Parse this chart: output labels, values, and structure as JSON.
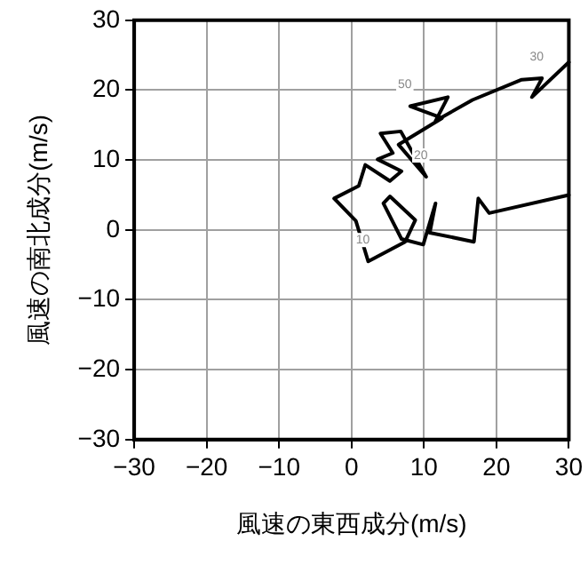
{
  "chart_data": {
    "type": "line",
    "xlabel": "風速の東西成分(m/s)",
    "ylabel": "風速の南北成分(m/s)",
    "series": [
      {
        "color": "#000000",
        "x": [
          30,
          19,
          17.5,
          16.9,
          10.8,
          11.6,
          9.9,
          6.9,
          4.4,
          5.3,
          8.8,
          7.4,
          2.3,
          0.6,
          -2.4,
          1.0,
          1.9,
          5.3,
          6.9,
          3.6,
          5.7,
          4.0,
          6.8,
          10.3,
          6.5,
          12.5,
          8.1,
          13.3,
          11.6,
          16.7,
          23.5,
          26.3,
          24.9,
          30
        ],
        "values": [
          5,
          2.4,
          4.5,
          -1.7,
          -0.4,
          3.8,
          -2.1,
          -1.3,
          3.8,
          4.8,
          1.4,
          -1.7,
          -4.5,
          1.3,
          4.5,
          6.3,
          9.3,
          7.0,
          8.4,
          10.1,
          11.0,
          13.8,
          14.1,
          7.6,
          12.2,
          16.0,
          17.7,
          19.0,
          15.6,
          18.6,
          21.5,
          21.7,
          19.0,
          24
        ]
      }
    ],
    "annotations": [
      {
        "text": "10",
        "x": 2.3,
        "y": -4.5
      },
      {
        "text": "20",
        "x": 10.3,
        "y": 7.6
      },
      {
        "text": "50",
        "x": 8.1,
        "y": 17.7
      },
      {
        "text": "30",
        "x": 26.3,
        "y": 21.7
      }
    ],
    "xlim": [
      -30,
      30
    ],
    "ylim": [
      -30,
      30
    ],
    "xticks": [
      -30,
      -20,
      -10,
      0,
      10,
      20,
      30
    ],
    "yticks": [
      -30,
      -20,
      -10,
      0,
      10,
      20,
      30
    ],
    "grid": true,
    "legend": false,
    "marker": "none",
    "line_style": "solid"
  }
}
